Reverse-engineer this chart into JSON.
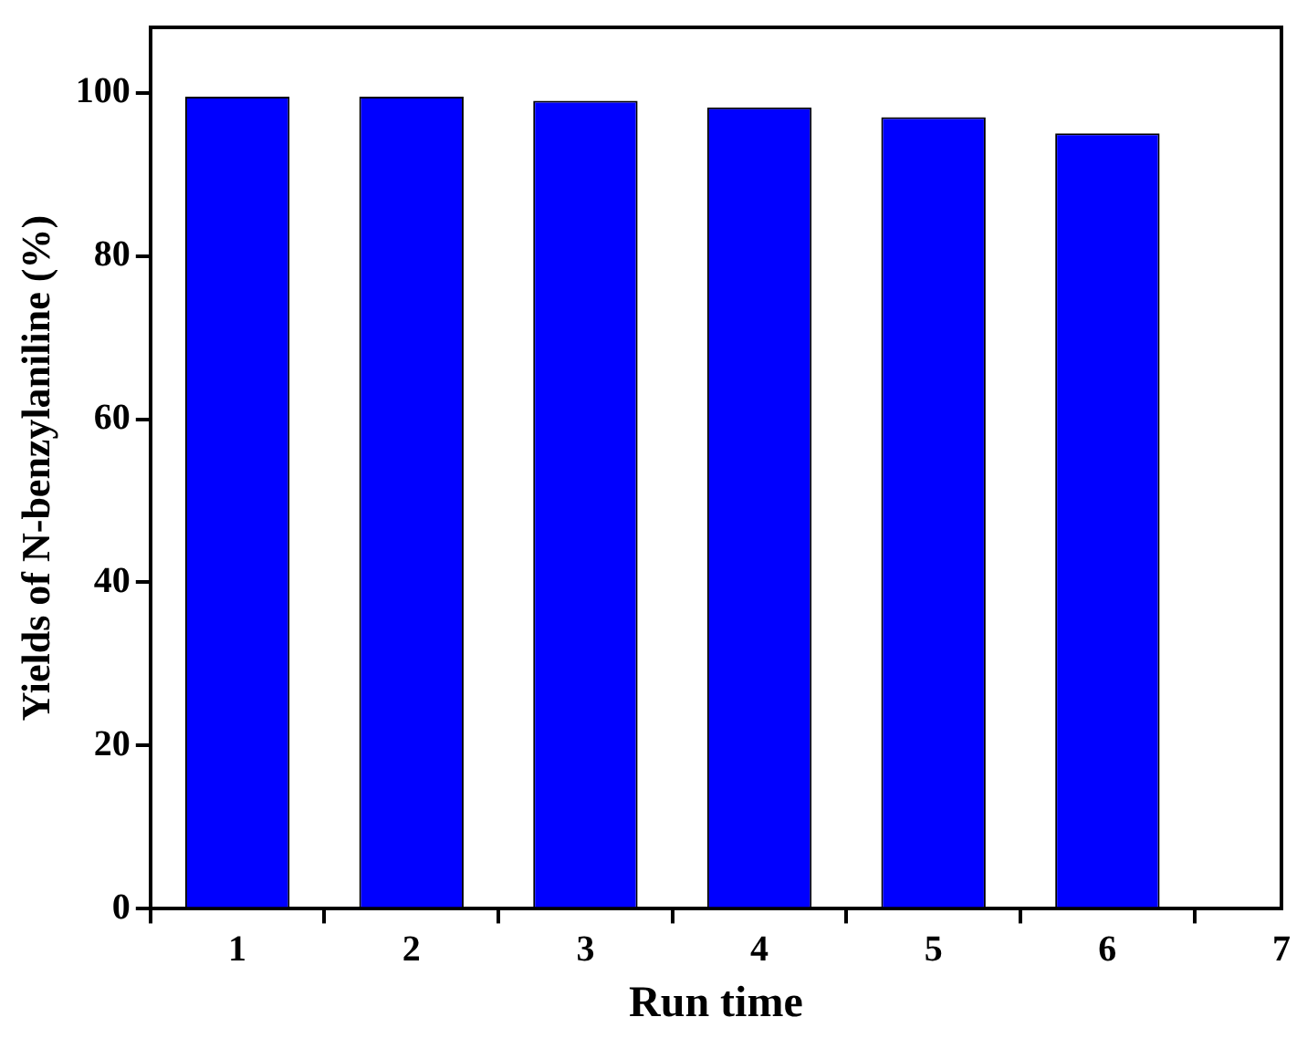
{
  "chart_data": {
    "type": "bar",
    "xlabel": "Run time",
    "ylabel": "Yields of N-benzylaniline (%)",
    "x": [
      1,
      2,
      3,
      4,
      5,
      6
    ],
    "series": [
      {
        "color": "#0000ff",
        "values": [
          99.5,
          99.5,
          99,
          98.2,
          97,
          95
        ]
      }
    ],
    "xlim": [
      0.5,
      7
    ],
    "xticks": [
      1,
      2,
      3,
      4,
      5,
      6,
      7
    ],
    "ylim": [
      0,
      108
    ],
    "yticks": [
      0,
      20,
      40,
      60,
      80,
      100
    ],
    "grid": false,
    "legend": false
  }
}
